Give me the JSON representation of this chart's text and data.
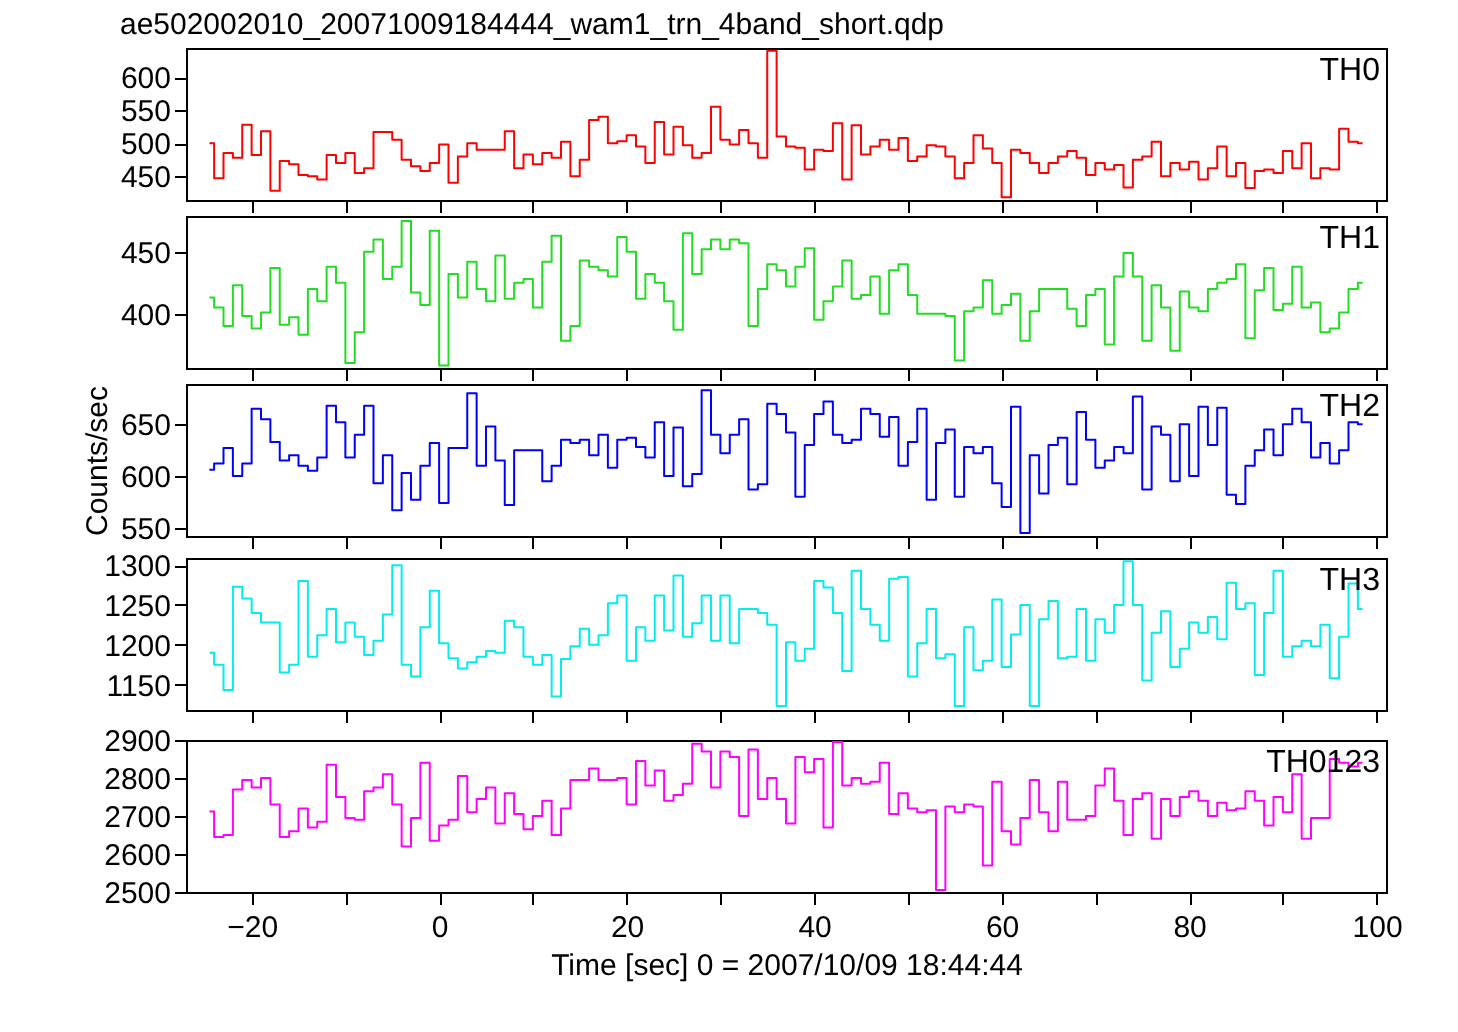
{
  "chart_data": [
    {
      "type": "step",
      "title": "ae502002010_20071009184444_wam1_trn_4band_short.qdp",
      "tick_labels": "y",
      "xlim": [
        -27,
        101
      ],
      "xticks": [
        -20,
        {
          "value": -10,
          "label": null
        },
        0,
        {
          "value": 10,
          "label": null
        },
        20,
        {
          "value": 30,
          "label": null
        },
        40,
        {
          "value": 50,
          "label": null
        },
        60,
        {
          "value": 70,
          "label": null
        },
        80,
        {
          "value": 90,
          "label": null
        },
        100
      ],
      "ylim": [
        414,
        644
      ],
      "yticks": [
        450,
        500,
        550,
        600
      ],
      "x": [
        -24.5,
        -23.5,
        -22.5,
        -21.5,
        -20.5,
        -19.5,
        -18.5,
        -17.5,
        -16.5,
        -15.5,
        -14.5,
        -13.5,
        -12.5,
        -11.5,
        -10.5,
        -9.5,
        -8.5,
        -7.5,
        -6.5,
        -5.5,
        -4.5,
        -3.5,
        -2.5,
        -1.5,
        -0.5,
        0.5,
        1.5,
        2.5,
        3.5,
        4.5,
        5.5,
        6.5,
        7.5,
        8.5,
        9.5,
        10.5,
        11.5,
        12.5,
        13.5,
        14.5,
        15.5,
        16.5,
        17.5,
        18.5,
        19.5,
        20.5,
        21.5,
        22.5,
        23.5,
        24.5,
        25.5,
        26.5,
        27.5,
        28.5,
        29.5,
        30.5,
        31.5,
        32.5,
        33.5,
        34.5,
        35.5,
        36.5,
        37.5,
        38.5,
        39.5,
        40.5,
        41.5,
        42.5,
        43.5,
        44.5,
        45.5,
        46.5,
        47.5,
        48.5,
        49.5,
        50.5,
        51.5,
        52.5,
        53.5,
        54.5,
        55.5,
        56.5,
        57.5,
        58.5,
        59.5,
        60.5,
        61.5,
        62.5,
        63.5,
        64.5,
        65.5,
        66.5,
        67.5,
        68.5,
        69.5,
        70.5,
        71.5,
        72.5,
        73.5,
        74.5,
        75.5,
        76.5,
        77.5,
        78.5,
        79.5,
        80.5,
        81.5,
        82.5,
        83.5,
        84.5,
        85.5,
        86.5,
        87.5,
        88.5,
        89.5,
        90.5,
        91.5,
        92.5,
        93.5,
        94.5,
        95.5,
        96.5,
        97.5,
        98.5
      ],
      "series": [
        {
          "name": "TH0",
          "color": "#ff0000",
          "values": [
            500,
            447,
            485,
            478,
            528,
            482,
            518,
            428,
            473,
            468,
            452,
            450,
            445,
            482,
            470,
            485,
            455,
            462,
            517,
            517,
            505,
            475,
            465,
            458,
            470,
            498,
            440,
            480,
            500,
            490,
            490,
            490,
            518,
            462,
            483,
            468,
            485,
            478,
            502,
            450,
            475,
            535,
            540,
            500,
            503,
            512,
            495,
            470,
            532,
            483,
            525,
            497,
            478,
            485,
            555,
            505,
            498,
            520,
            500,
            478,
            640,
            510,
            495,
            493,
            460,
            490,
            488,
            530,
            445,
            527,
            483,
            495,
            505,
            490,
            508,
            473,
            480,
            497,
            495,
            480,
            447,
            470,
            512,
            492,
            470,
            418,
            490,
            485,
            470,
            455,
            470,
            480,
            488,
            478,
            452,
            470,
            460,
            467,
            433,
            475,
            480,
            502,
            450,
            470,
            460,
            472,
            445,
            462,
            495,
            450,
            470,
            432,
            458,
            460,
            455,
            488,
            462,
            500,
            447,
            462,
            460,
            522,
            502,
            500
          ]
        }
      ]
    },
    {
      "type": "step",
      "tick_labels": "y",
      "xlim": [
        -27,
        101
      ],
      "xticks": [
        -20,
        {
          "value": -10,
          "label": null
        },
        0,
        {
          "value": 10,
          "label": null
        },
        20,
        {
          "value": 30,
          "label": null
        },
        40,
        {
          "value": 50,
          "label": null
        },
        60,
        {
          "value": 70,
          "label": null
        },
        80,
        {
          "value": 90,
          "label": null
        },
        100
      ],
      "ylim": [
        356,
        479
      ],
      "yticks": [
        400,
        450
      ],
      "x": [
        -24.5,
        -23.5,
        -22.5,
        -21.5,
        -20.5,
        -19.5,
        -18.5,
        -17.5,
        -16.5,
        -15.5,
        -14.5,
        -13.5,
        -12.5,
        -11.5,
        -10.5,
        -9.5,
        -8.5,
        -7.5,
        -6.5,
        -5.5,
        -4.5,
        -3.5,
        -2.5,
        -1.5,
        -0.5,
        0.5,
        1.5,
        2.5,
        3.5,
        4.5,
        5.5,
        6.5,
        7.5,
        8.5,
        9.5,
        10.5,
        11.5,
        12.5,
        13.5,
        14.5,
        15.5,
        16.5,
        17.5,
        18.5,
        19.5,
        20.5,
        21.5,
        22.5,
        23.5,
        24.5,
        25.5,
        26.5,
        27.5,
        28.5,
        29.5,
        30.5,
        31.5,
        32.5,
        33.5,
        34.5,
        35.5,
        36.5,
        37.5,
        38.5,
        39.5,
        40.5,
        41.5,
        42.5,
        43.5,
        44.5,
        45.5,
        46.5,
        47.5,
        48.5,
        49.5,
        50.5,
        51.5,
        52.5,
        53.5,
        54.5,
        55.5,
        56.5,
        57.5,
        58.5,
        59.5,
        60.5,
        61.5,
        62.5,
        63.5,
        64.5,
        65.5,
        66.5,
        67.5,
        68.5,
        69.5,
        70.5,
        71.5,
        72.5,
        73.5,
        74.5,
        75.5,
        76.5,
        77.5,
        78.5,
        79.5,
        80.5,
        81.5,
        82.5,
        83.5,
        84.5,
        85.5,
        86.5,
        87.5,
        88.5,
        89.5,
        90.5,
        91.5,
        92.5,
        93.5,
        94.5,
        95.5,
        96.5,
        97.5,
        98.5
      ],
      "series": [
        {
          "name": "TH1",
          "color": "#22dd22",
          "values": [
            413,
            405,
            390,
            423,
            398,
            388,
            401,
            437,
            391,
            397,
            383,
            420,
            410,
            438,
            425,
            360,
            385,
            450,
            460,
            428,
            438,
            475,
            417,
            407,
            467,
            358,
            432,
            413,
            442,
            420,
            410,
            447,
            412,
            425,
            428,
            405,
            442,
            463,
            378,
            390,
            443,
            438,
            435,
            430,
            462,
            450,
            412,
            432,
            425,
            410,
            387,
            465,
            432,
            452,
            460,
            452,
            460,
            457,
            390,
            420,
            440,
            435,
            422,
            438,
            453,
            395,
            410,
            422,
            443,
            412,
            415,
            430,
            400,
            435,
            440,
            415,
            400,
            400,
            400,
            398,
            362,
            402,
            405,
            427,
            400,
            407,
            416,
            378,
            402,
            420,
            420,
            420,
            404,
            390,
            415,
            420,
            375,
            430,
            449,
            430,
            378,
            423,
            405,
            370,
            418,
            405,
            402,
            420,
            425,
            428,
            440,
            380,
            419,
            437,
            403,
            408,
            438,
            405,
            409,
            385,
            388,
            401,
            420,
            425
          ]
        }
      ]
    },
    {
      "type": "step",
      "tick_labels": "y",
      "ylabel": "Counts/sec",
      "xlim": [
        -27,
        101
      ],
      "xticks": [
        -20,
        {
          "value": -10,
          "label": null
        },
        0,
        {
          "value": 10,
          "label": null
        },
        20,
        {
          "value": 30,
          "label": null
        },
        40,
        {
          "value": 50,
          "label": null
        },
        60,
        {
          "value": 70,
          "label": null
        },
        80,
        {
          "value": 90,
          "label": null
        },
        100
      ],
      "ylim": [
        542,
        689
      ],
      "yticks": [
        550,
        600,
        650
      ],
      "x": [
        -24.5,
        -23.5,
        -22.5,
        -21.5,
        -20.5,
        -19.5,
        -18.5,
        -17.5,
        -16.5,
        -15.5,
        -14.5,
        -13.5,
        -12.5,
        -11.5,
        -10.5,
        -9.5,
        -8.5,
        -7.5,
        -6.5,
        -5.5,
        -4.5,
        -3.5,
        -2.5,
        -1.5,
        -0.5,
        0.5,
        1.5,
        2.5,
        3.5,
        4.5,
        5.5,
        6.5,
        7.5,
        8.5,
        9.5,
        10.5,
        11.5,
        12.5,
        13.5,
        14.5,
        15.5,
        16.5,
        17.5,
        18.5,
        19.5,
        20.5,
        21.5,
        22.5,
        23.5,
        24.5,
        25.5,
        26.5,
        27.5,
        28.5,
        29.5,
        30.5,
        31.5,
        32.5,
        33.5,
        34.5,
        35.5,
        36.5,
        37.5,
        38.5,
        39.5,
        40.5,
        41.5,
        42.5,
        43.5,
        44.5,
        45.5,
        46.5,
        47.5,
        48.5,
        49.5,
        50.5,
        51.5,
        52.5,
        53.5,
        54.5,
        55.5,
        56.5,
        57.5,
        58.5,
        59.5,
        60.5,
        61.5,
        62.5,
        63.5,
        64.5,
        65.5,
        66.5,
        67.5,
        68.5,
        69.5,
        70.5,
        71.5,
        72.5,
        73.5,
        74.5,
        75.5,
        76.5,
        77.5,
        78.5,
        79.5,
        80.5,
        81.5,
        82.5,
        83.5,
        84.5,
        85.5,
        86.5,
        87.5,
        88.5,
        89.5,
        90.5,
        91.5,
        92.5,
        93.5,
        94.5,
        95.5,
        96.5,
        97.5,
        98.5
      ],
      "series": [
        {
          "name": "TH2",
          "color": "#0000ff",
          "values": [
            606,
            612,
            627,
            600,
            612,
            665,
            655,
            633,
            615,
            620,
            610,
            605,
            618,
            668,
            652,
            618,
            640,
            668,
            593,
            620,
            567,
            603,
            577,
            610,
            632,
            574,
            627,
            627,
            680,
            610,
            648,
            615,
            572,
            625,
            625,
            625,
            595,
            610,
            635,
            632,
            635,
            620,
            640,
            608,
            635,
            637,
            628,
            618,
            652,
            600,
            647,
            590,
            602,
            683,
            640,
            622,
            640,
            655,
            587,
            592,
            670,
            660,
            642,
            580,
            630,
            660,
            672,
            640,
            632,
            635,
            665,
            660,
            638,
            657,
            610,
            633,
            665,
            577,
            632,
            645,
            580,
            628,
            622,
            628,
            593,
            570,
            667,
            545,
            620,
            583,
            630,
            637,
            592,
            662,
            635,
            608,
            615,
            628,
            622,
            677,
            587,
            648,
            640,
            595,
            650,
            600,
            667,
            630,
            666,
            582,
            573,
            610,
            625,
            645,
            620,
            650,
            665,
            652,
            618,
            632,
            612,
            625,
            652,
            650
          ]
        }
      ]
    },
    {
      "type": "step",
      "tick_labels": "y",
      "xlim": [
        -27,
        101
      ],
      "xticks": [
        -20,
        {
          "value": -10,
          "label": null
        },
        0,
        {
          "value": 10,
          "label": null
        },
        20,
        {
          "value": 30,
          "label": null
        },
        40,
        {
          "value": 50,
          "label": null
        },
        60,
        {
          "value": 70,
          "label": null
        },
        80,
        {
          "value": 90,
          "label": null
        },
        100
      ],
      "ylim": [
        1118,
        1309
      ],
      "yticks": [
        1150,
        1200,
        1250,
        1300
      ],
      "x": [
        -24.5,
        -23.5,
        -22.5,
        -21.5,
        -20.5,
        -19.5,
        -18.5,
        -17.5,
        -16.5,
        -15.5,
        -14.5,
        -13.5,
        -12.5,
        -11.5,
        -10.5,
        -9.5,
        -8.5,
        -7.5,
        -6.5,
        -5.5,
        -4.5,
        -3.5,
        -2.5,
        -1.5,
        -0.5,
        0.5,
        1.5,
        2.5,
        3.5,
        4.5,
        5.5,
        6.5,
        7.5,
        8.5,
        9.5,
        10.5,
        11.5,
        12.5,
        13.5,
        14.5,
        15.5,
        16.5,
        17.5,
        18.5,
        19.5,
        20.5,
        21.5,
        22.5,
        23.5,
        24.5,
        25.5,
        26.5,
        27.5,
        28.5,
        29.5,
        30.5,
        31.5,
        32.5,
        33.5,
        34.5,
        35.5,
        36.5,
        37.5,
        38.5,
        39.5,
        40.5,
        41.5,
        42.5,
        43.5,
        44.5,
        45.5,
        46.5,
        47.5,
        48.5,
        49.5,
        50.5,
        51.5,
        52.5,
        53.5,
        54.5,
        55.5,
        56.5,
        57.5,
        58.5,
        59.5,
        60.5,
        61.5,
        62.5,
        63.5,
        64.5,
        65.5,
        66.5,
        67.5,
        68.5,
        69.5,
        70.5,
        71.5,
        72.5,
        73.5,
        74.5,
        75.5,
        76.5,
        77.5,
        78.5,
        79.5,
        80.5,
        81.5,
        82.5,
        83.5,
        84.5,
        85.5,
        86.5,
        87.5,
        88.5,
        89.5,
        90.5,
        91.5,
        92.5,
        93.5,
        94.5,
        95.5,
        96.5,
        97.5,
        98.5
      ],
      "series": [
        {
          "name": "TH3",
          "color": "#00eeee",
          "values": [
            1190,
            1175,
            1143,
            1273,
            1258,
            1240,
            1228,
            1228,
            1165,
            1175,
            1280,
            1185,
            1212,
            1245,
            1203,
            1228,
            1210,
            1187,
            1205,
            1238,
            1300,
            1175,
            1160,
            1222,
            1268,
            1202,
            1183,
            1170,
            1178,
            1185,
            1192,
            1190,
            1230,
            1222,
            1185,
            1175,
            1187,
            1135,
            1182,
            1198,
            1220,
            1200,
            1212,
            1252,
            1262,
            1180,
            1222,
            1205,
            1262,
            1218,
            1287,
            1210,
            1227,
            1262,
            1205,
            1262,
            1202,
            1245,
            1245,
            1240,
            1225,
            1123,
            1203,
            1180,
            1195,
            1280,
            1272,
            1240,
            1167,
            1293,
            1245,
            1225,
            1205,
            1283,
            1285,
            1160,
            1202,
            1245,
            1183,
            1188,
            1123,
            1222,
            1168,
            1180,
            1257,
            1172,
            1213,
            1250,
            1123,
            1232,
            1255,
            1183,
            1185,
            1245,
            1180,
            1232,
            1215,
            1250,
            1305,
            1250,
            1155,
            1215,
            1242,
            1172,
            1195,
            1228,
            1215,
            1235,
            1207,
            1278,
            1245,
            1252,
            1162,
            1240,
            1293,
            1185,
            1198,
            1205,
            1198,
            1225,
            1158,
            1210,
            1277,
            1245
          ]
        }
      ]
    },
    {
      "type": "step",
      "xlabel": "Time [sec] 0 = 2007/10/09 18:44:44",
      "xlim": [
        -27,
        101
      ],
      "xticks": [
        -20,
        {
          "value": -10,
          "label": null
        },
        0,
        {
          "value": 10,
          "label": null
        },
        20,
        {
          "value": 30,
          "label": null
        },
        40,
        {
          "value": 50,
          "label": null
        },
        60,
        {
          "value": 70,
          "label": null
        },
        80,
        {
          "value": 90,
          "label": null
        },
        100
      ],
      "ylim": [
        2500,
        2900
      ],
      "yticks": [
        2500,
        2600,
        2700,
        2800,
        2900
      ],
      "x": [
        -24.5,
        -23.5,
        -22.5,
        -21.5,
        -20.5,
        -19.5,
        -18.5,
        -17.5,
        -16.5,
        -15.5,
        -14.5,
        -13.5,
        -12.5,
        -11.5,
        -10.5,
        -9.5,
        -8.5,
        -7.5,
        -6.5,
        -5.5,
        -4.5,
        -3.5,
        -2.5,
        -1.5,
        -0.5,
        0.5,
        1.5,
        2.5,
        3.5,
        4.5,
        5.5,
        6.5,
        7.5,
        8.5,
        9.5,
        10.5,
        11.5,
        12.5,
        13.5,
        14.5,
        15.5,
        16.5,
        17.5,
        18.5,
        19.5,
        20.5,
        21.5,
        22.5,
        23.5,
        24.5,
        25.5,
        26.5,
        27.5,
        28.5,
        29.5,
        30.5,
        31.5,
        32.5,
        33.5,
        34.5,
        35.5,
        36.5,
        37.5,
        38.5,
        39.5,
        40.5,
        41.5,
        42.5,
        43.5,
        44.5,
        45.5,
        46.5,
        47.5,
        48.5,
        49.5,
        50.5,
        51.5,
        52.5,
        53.5,
        54.5,
        55.5,
        56.5,
        57.5,
        58.5,
        59.5,
        60.5,
        61.5,
        62.5,
        63.5,
        64.5,
        65.5,
        66.5,
        67.5,
        68.5,
        69.5,
        70.5,
        71.5,
        72.5,
        73.5,
        74.5,
        75.5,
        76.5,
        77.5,
        78.5,
        79.5,
        80.5,
        81.5,
        82.5,
        83.5,
        84.5,
        85.5,
        86.5,
        87.5,
        88.5,
        89.5,
        90.5,
        91.5,
        92.5,
        93.5,
        94.5,
        95.5,
        96.5,
        97.5,
        98.5
      ],
      "series": [
        {
          "name": "TH0123",
          "color": "#ff00ff",
          "values": [
            2712,
            2645,
            2650,
            2770,
            2795,
            2775,
            2800,
            2730,
            2645,
            2660,
            2720,
            2670,
            2685,
            2835,
            2750,
            2695,
            2690,
            2765,
            2775,
            2810,
            2730,
            2620,
            2695,
            2840,
            2635,
            2675,
            2690,
            2805,
            2710,
            2745,
            2775,
            2680,
            2760,
            2705,
            2665,
            2700,
            2740,
            2650,
            2720,
            2795,
            2795,
            2825,
            2795,
            2795,
            2800,
            2730,
            2845,
            2780,
            2820,
            2740,
            2755,
            2785,
            2890,
            2870,
            2775,
            2870,
            2855,
            2700,
            2875,
            2745,
            2800,
            2745,
            2680,
            2855,
            2815,
            2850,
            2670,
            2895,
            2780,
            2800,
            2785,
            2790,
            2840,
            2705,
            2760,
            2720,
            2710,
            2715,
            2505,
            2725,
            2710,
            2730,
            2725,
            2570,
            2790,
            2660,
            2625,
            2695,
            2795,
            2710,
            2660,
            2790,
            2690,
            2690,
            2700,
            2780,
            2825,
            2740,
            2650,
            2745,
            2760,
            2640,
            2745,
            2700,
            2750,
            2765,
            2740,
            2700,
            2735,
            2715,
            2720,
            2765,
            2740,
            2675,
            2750,
            2710,
            2810,
            2640,
            2695,
            2695,
            2850,
            2840,
            2830,
            2840
          ]
        }
      ]
    }
  ]
}
